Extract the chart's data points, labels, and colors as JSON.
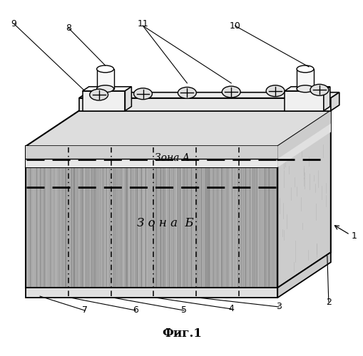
{
  "title": "Фиг.1",
  "zone_a_label": "Зона А",
  "zone_b_label": "З о н а  Б",
  "bg_color": "#ffffff",
  "body_front_color": "#aaaaaa",
  "body_right_color": "#cccccc",
  "body_top_color": "#dddddd",
  "zone_a_color": "#d8d8d8",
  "lid_color": "#e8e8e8",
  "lid_top_color": "#eeeeee",
  "terminal_color": "#f0f0f0",
  "cap_color": "#e0e0e0"
}
